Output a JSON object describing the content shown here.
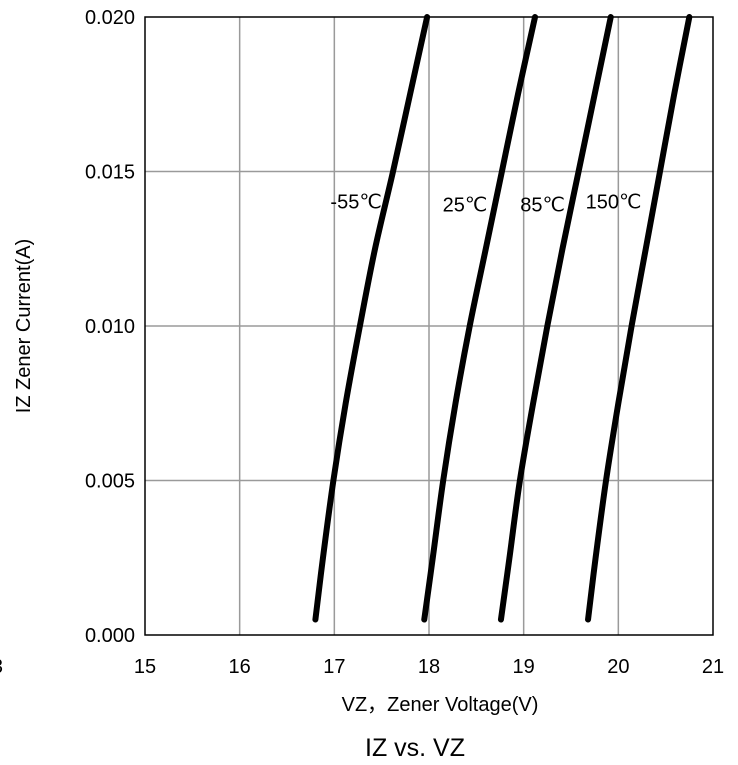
{
  "chart_data": {
    "type": "line",
    "title": "IZ vs. VZ",
    "xlabel": "VZ，Zener Voltage(V)",
    "ylabel": "IZ Zener Current(A)",
    "xlim": [
      15,
      21
    ],
    "ylim": [
      0,
      0.02
    ],
    "x_ticks": [
      "15",
      "16",
      "17",
      "18",
      "19",
      "20",
      "21"
    ],
    "y_ticks": [
      "0.000",
      "0.005",
      "0.010",
      "0.015",
      "0.020"
    ],
    "clipped_left_tick": "3",
    "grid": true,
    "legend": "none",
    "line_color": "#000000",
    "series": [
      {
        "name": "-55℃",
        "points": [
          [
            16.8,
            0.0005
          ],
          [
            16.88,
            0.0025
          ],
          [
            16.99,
            0.005
          ],
          [
            17.12,
            0.0075
          ],
          [
            17.27,
            0.01
          ],
          [
            17.43,
            0.0125
          ],
          [
            17.62,
            0.015
          ],
          [
            17.8,
            0.0175
          ],
          [
            17.98,
            0.02
          ]
        ]
      },
      {
        "name": "25℃",
        "points": [
          [
            17.95,
            0.0005
          ],
          [
            18.04,
            0.0025
          ],
          [
            18.15,
            0.005
          ],
          [
            18.28,
            0.0075
          ],
          [
            18.43,
            0.01
          ],
          [
            18.6,
            0.0125
          ],
          [
            18.77,
            0.015
          ],
          [
            18.94,
            0.0175
          ],
          [
            19.12,
            0.02
          ]
        ]
      },
      {
        "name": "85℃",
        "points": [
          [
            18.76,
            0.0005
          ],
          [
            18.85,
            0.0025
          ],
          [
            18.96,
            0.005
          ],
          [
            19.1,
            0.0075
          ],
          [
            19.25,
            0.01
          ],
          [
            19.41,
            0.0125
          ],
          [
            19.58,
            0.015
          ],
          [
            19.75,
            0.0175
          ],
          [
            19.92,
            0.02
          ]
        ]
      },
      {
        "name": "150℃",
        "points": [
          [
            19.68,
            0.0005
          ],
          [
            19.76,
            0.0025
          ],
          [
            19.87,
            0.005
          ],
          [
            20.0,
            0.0075
          ],
          [
            20.14,
            0.01
          ],
          [
            20.29,
            0.0125
          ],
          [
            20.44,
            0.015
          ],
          [
            20.59,
            0.0175
          ],
          [
            20.75,
            0.02
          ]
        ]
      }
    ],
    "series_labels": [
      {
        "text": "-55℃",
        "x": 17.23,
        "y": 0.0138
      },
      {
        "text": "25℃",
        "x": 18.38,
        "y": 0.0137
      },
      {
        "text": "85℃",
        "x": 19.2,
        "y": 0.0137
      },
      {
        "text": "150℃",
        "x": 19.95,
        "y": 0.0138
      }
    ]
  }
}
